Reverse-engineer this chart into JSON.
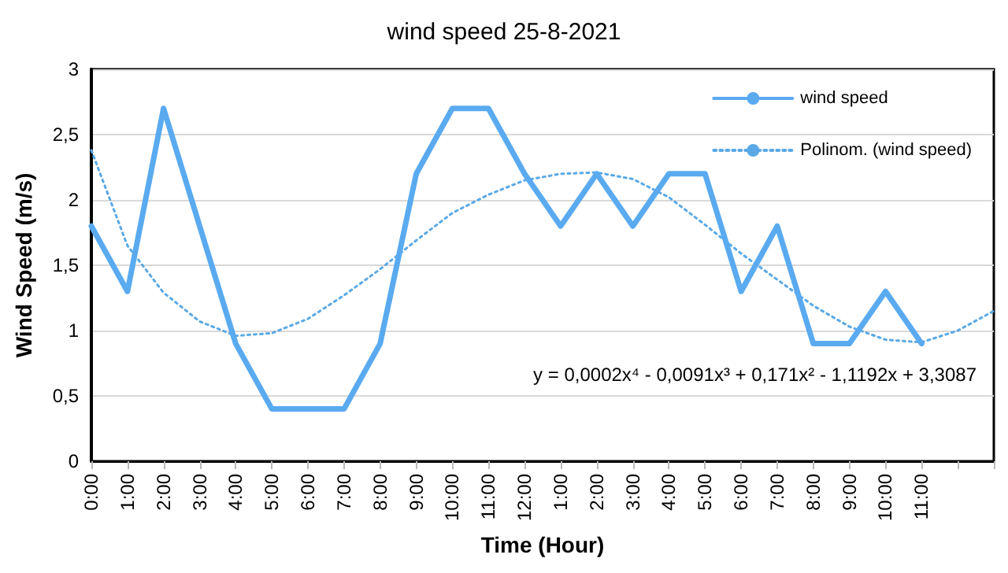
{
  "chart_data": {
    "type": "line",
    "title": "wind speed 25-8-2021",
    "xlabel": "Time (Hour)",
    "ylabel": "Wind Speed (m/s)",
    "categories": [
      "0:00",
      "1:00",
      "2:00",
      "3:00",
      "4:00",
      "5:00",
      "6:00",
      "7:00",
      "8:00",
      "9:00",
      "10:00",
      "11:00",
      "12:00",
      "1:00",
      "2:00",
      "3:00",
      "4:00",
      "5:00",
      "6:00",
      "7:00",
      "8:00",
      "9:00",
      "10:00",
      "11:00",
      null,
      null
    ],
    "series": [
      {
        "name": "wind speed",
        "color": "#5aaaf0",
        "line_style": "solid",
        "values": [
          1.8,
          1.3,
          2.7,
          1.8,
          0.9,
          0.4,
          0.4,
          0.4,
          0.9,
          2.2,
          2.7,
          2.7,
          2.2,
          1.8,
          2.2,
          1.8,
          2.2,
          2.2,
          1.3,
          1.8,
          0.9,
          0.9,
          1.3,
          0.9,
          null,
          null
        ]
      },
      {
        "name": "Polinom. (wind speed)",
        "color": "#5aa9e6",
        "line_style": "dotted",
        "values": [
          2.38,
          1.65,
          1.29,
          1.07,
          0.96,
          0.98,
          1.09,
          1.27,
          1.47,
          1.69,
          1.9,
          2.04,
          2.15,
          2.2,
          2.21,
          2.16,
          2.02,
          1.81,
          1.59,
          1.39,
          1.19,
          1.03,
          0.93,
          0.91,
          1.0,
          1.15
        ]
      }
    ],
    "ylim": [
      0,
      3
    ],
    "yticks": [
      0,
      {
        "value": 0.5,
        "label": "0,5"
      },
      1,
      {
        "value": 1.5,
        "label": "1,5"
      },
      2,
      {
        "value": 2.5,
        "label": "2,5"
      },
      3
    ],
    "grid": "y",
    "legend": "top right",
    "marker": "none",
    "annotations": [
      "y = 0,0002x⁴ - 0,0091x³ + 0,171x² - 1,1192x + 3,3087"
    ]
  }
}
